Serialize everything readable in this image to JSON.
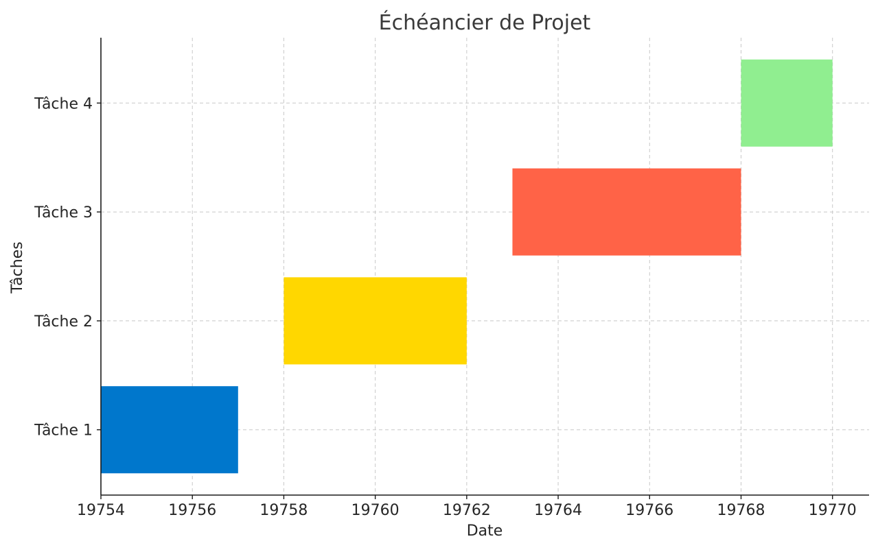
{
  "chart_data": {
    "type": "bar",
    "orientation": "horizontal",
    "title": "Échéancier de Projet",
    "xlabel": "Date",
    "ylabel": "Tâches",
    "xlim": [
      19754,
      19770.8
    ],
    "ylim": [
      0.4,
      4.6
    ],
    "xticks": [
      19754,
      19756,
      19758,
      19760,
      19762,
      19764,
      19766,
      19768,
      19770
    ],
    "grid": true,
    "categories": [
      "Tâche 1",
      "Tâche 2",
      "Tâche 3",
      "Tâche 4"
    ],
    "tasks": [
      {
        "name": "Tâche 1",
        "start": 19754,
        "end": 19757,
        "color": "#0077cc"
      },
      {
        "name": "Tâche 2",
        "start": 19758,
        "end": 19762,
        "color": "#ffd700"
      },
      {
        "name": "Tâche 3",
        "start": 19763,
        "end": 19768,
        "color": "#ff6347"
      },
      {
        "name": "Tâche 4",
        "start": 19768,
        "end": 19770,
        "color": "#90ee90"
      }
    ]
  }
}
